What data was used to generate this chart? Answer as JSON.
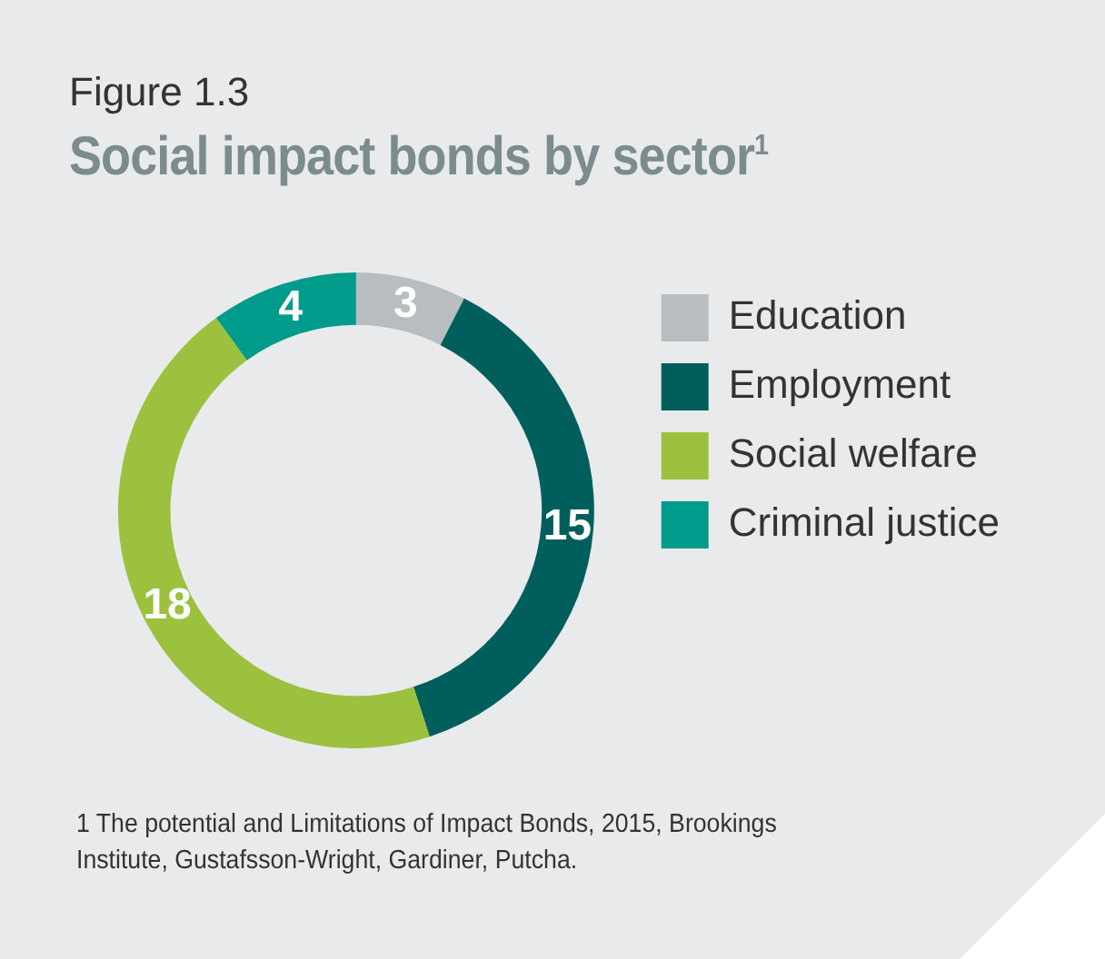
{
  "chart_data": {
    "type": "donut",
    "subtitle": "Figure 1.3",
    "title": "Social impact bonds by sector$^{1}$",
    "categories": [
      "Education",
      "Employment",
      "Social welfare",
      "Criminal justice"
    ],
    "values": [
      3,
      15,
      18,
      4
    ],
    "colors": [
      "#b8bdbf",
      "#005f5c",
      "#9cc13e",
      "#009b8b"
    ],
    "data_labels": true,
    "legend": "right",
    "annotations": [
      "1 The potential and Limitations of Impact Bonds, 2015, Brookings Institute, Gustafsson-Wright, Gardiner, Putcha."
    ]
  }
}
